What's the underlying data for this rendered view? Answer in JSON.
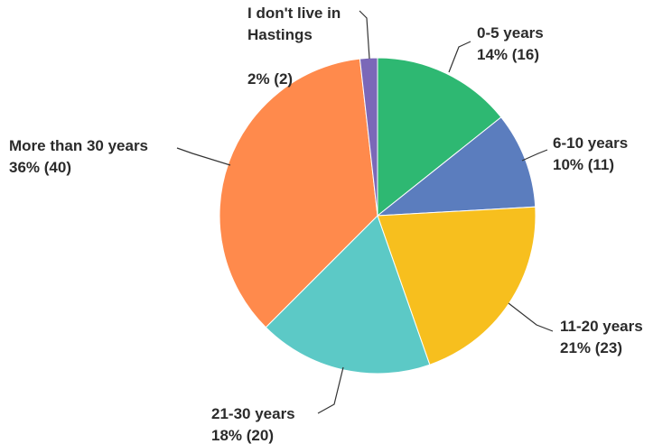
{
  "chart_data": {
    "type": "pie",
    "start_angle_deg": -90,
    "direction": "clockwise",
    "slices": [
      {
        "label_lines": [
          "0-5 years"
        ],
        "value_text": "14% (16)",
        "percent": 14,
        "count": 16,
        "color": "#2EB872"
      },
      {
        "label_lines": [
          "6-10 years"
        ],
        "value_text": "10% (11)",
        "percent": 10,
        "count": 11,
        "color": "#5B7DBE"
      },
      {
        "label_lines": [
          "11-20 years"
        ],
        "value_text": "21% (23)",
        "percent": 21,
        "count": 23,
        "color": "#F7BF1E"
      },
      {
        "label_lines": [
          "21-30 years"
        ],
        "value_text": "18% (20)",
        "percent": 18,
        "count": 20,
        "color": "#5CC9C6"
      },
      {
        "label_lines": [
          "More than 30 years"
        ],
        "value_text": "36% (40)",
        "percent": 36,
        "count": 40,
        "color": "#FF8A4C"
      },
      {
        "label_lines": [
          "I don't live in",
          "Hastings"
        ],
        "value_text": "2% (2)",
        "percent": 2,
        "count": 2,
        "color": "#7B68B8"
      }
    ]
  }
}
